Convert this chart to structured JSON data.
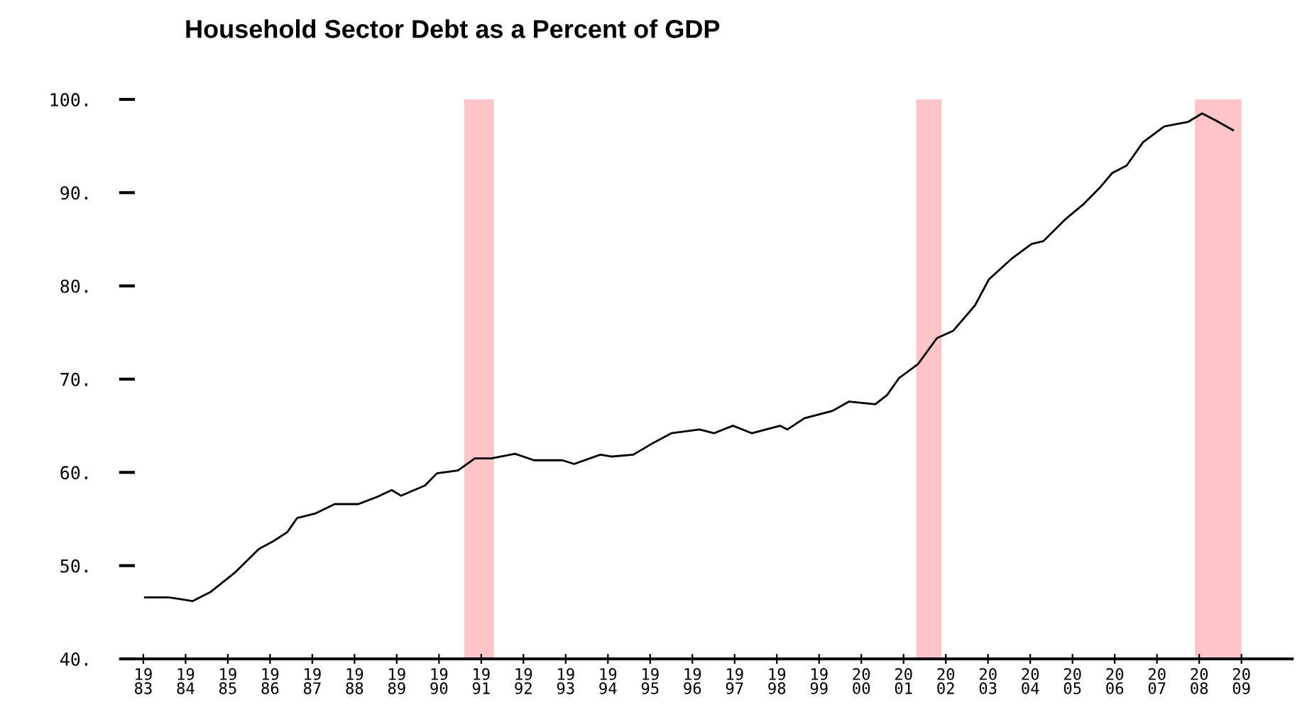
{
  "chart_data": {
    "type": "line",
    "title": "Household Sector Debt as a Percent of GDP",
    "x": [
      1983.04,
      1983.6,
      1984.17,
      1984.6,
      1985.18,
      1985.74,
      1986.07,
      1986.41,
      1986.64,
      1987.08,
      1987.53,
      1988.09,
      1988.55,
      1988.88,
      1989.1,
      1989.67,
      1989.95,
      1990.45,
      1990.85,
      1991.24,
      1991.8,
      1992.25,
      1992.92,
      1993.2,
      1993.82,
      1994.1,
      1994.6,
      1995.05,
      1995.5,
      1996.17,
      1996.51,
      1996.96,
      1997.41,
      1998.08,
      1998.25,
      1998.65,
      1999.32,
      1999.71,
      2000.33,
      2000.61,
      2000.89,
      2001.34,
      2001.79,
      2002.18,
      2002.69,
      2003.02,
      2003.58,
      2004.03,
      2004.31,
      2004.82,
      2005.27,
      2005.66,
      2005.94,
      2006.28,
      2006.67,
      2007.17,
      2007.74,
      2008.07,
      2008.41,
      2008.8
    ],
    "series": [
      {
        "color": "#000000",
        "values": [
          46.6,
          46.6,
          46.2,
          47.2,
          49.3,
          51.8,
          52.6,
          53.6,
          55.1,
          55.6,
          56.6,
          56.6,
          57.4,
          58.1,
          57.5,
          58.6,
          59.9,
          60.2,
          61.5,
          61.5,
          62.0,
          61.3,
          61.3,
          60.9,
          61.9,
          61.7,
          61.9,
          63.1,
          64.2,
          64.6,
          64.2,
          65.0,
          64.2,
          65.0,
          64.6,
          65.8,
          66.6,
          67.6,
          67.3,
          68.3,
          70.1,
          71.6,
          74.4,
          75.2,
          77.9,
          80.7,
          83.0,
          84.5,
          84.8,
          87.1,
          88.8,
          90.6,
          92.1,
          92.9,
          95.4,
          97.1,
          97.6,
          98.5,
          97.7,
          96.7
        ]
      }
    ],
    "xlim": [
      1982.8,
      2010.2
    ],
    "xticks": [
      1983,
      1984,
      1985,
      1986,
      1987,
      1988,
      1989,
      1990,
      1991,
      1992,
      1993,
      1994,
      1995,
      1996,
      1997,
      1998,
      1999,
      2000,
      2001,
      2002,
      2003,
      2004,
      2005,
      2006,
      2007,
      2008,
      2009
    ],
    "ylim": [
      40,
      100
    ],
    "yticks": [
      {
        "value": 40,
        "label": "40."
      },
      {
        "value": 50,
        "label": "50."
      },
      {
        "value": 60,
        "label": "60."
      },
      {
        "value": 70,
        "label": "70."
      },
      {
        "value": 80,
        "label": "80."
      },
      {
        "value": 90,
        "label": "90."
      },
      {
        "value": 100,
        "label": "100."
      }
    ],
    "bands": [
      {
        "axis": "x",
        "from": 1990.6,
        "to": 1991.3,
        "color": "#ffc4c8"
      },
      {
        "axis": "x",
        "from": 2001.3,
        "to": 2001.9,
        "color": "#ffc4c8"
      },
      {
        "axis": "x",
        "from": 2007.9,
        "to": 2009.0,
        "color": "#ffc4c8"
      }
    ],
    "grid": false,
    "legend": false,
    "marker": "none",
    "line_style": "solid"
  }
}
